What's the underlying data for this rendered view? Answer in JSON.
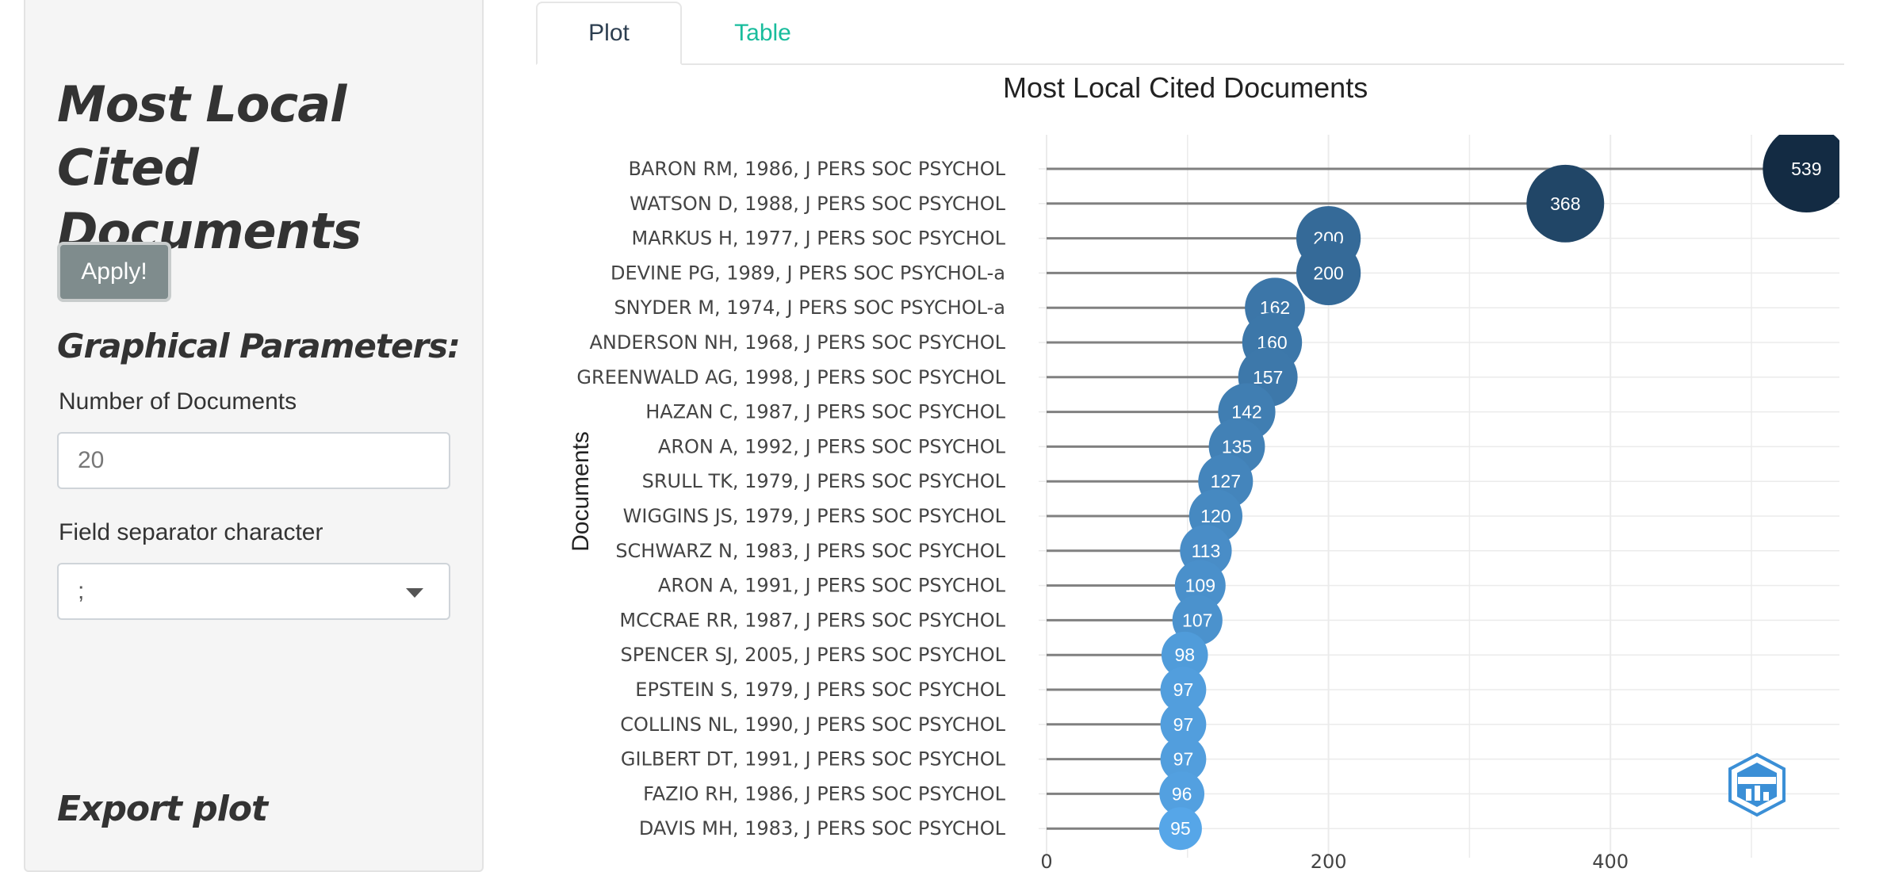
{
  "sidebar": {
    "title": "Most Local Cited Documents",
    "apply_label": "Apply!",
    "graphical_heading": "Graphical Parameters:",
    "num_docs_label": "Number of Documents",
    "num_docs_value": "20",
    "separator_label": "Field separator character",
    "separator_value": ";",
    "export_heading": "Export plot"
  },
  "tabs": [
    {
      "label": "Plot",
      "active": true
    },
    {
      "label": "Table",
      "active": false
    }
  ],
  "colors": {
    "accent_tab": "#18bc9c",
    "bubble_light": "#56a6e8",
    "bubble_dark": "#132b43"
  },
  "chart_data": {
    "type": "scatter",
    "title": "Most Local Cited Documents",
    "ylabel": "Documents",
    "xlabel": "",
    "categories": [
      "BARON RM, 1986, J PERS SOC PSYCHOL",
      "WATSON D, 1988, J PERS SOC PSYCHOL",
      "MARKUS H, 1977, J PERS SOC PSYCHOL",
      "DEVINE PG, 1989, J PERS SOC PSYCHOL-a",
      "SNYDER M, 1974, J PERS SOC PSYCHOL-a",
      "ANDERSON NH, 1968, J PERS SOC PSYCHOL",
      "GREENWALD AG, 1998, J PERS SOC PSYCHOL",
      "HAZAN C, 1987, J PERS SOC PSYCHOL",
      "ARON A, 1992, J PERS SOC PSYCHOL",
      "SRULL TK, 1979, J PERS SOC PSYCHOL",
      "WIGGINS JS, 1979, J PERS SOC PSYCHOL",
      "SCHWARZ N, 1983, J PERS SOC PSYCHOL",
      "ARON A, 1991, J PERS SOC PSYCHOL",
      "MCCRAE RR, 1987, J PERS SOC PSYCHOL",
      "SPENCER SJ, 2005, J PERS SOC PSYCHOL",
      "EPSTEIN S, 1979, J PERS SOC PSYCHOL",
      "COLLINS NL, 1990, J PERS SOC PSYCHOL",
      "GILBERT DT, 1991, J PERS SOC PSYCHOL",
      "FAZIO RH, 1986, J PERS SOC PSYCHOL",
      "DAVIS MH, 1983, J PERS SOC PSYCHOL"
    ],
    "values": [
      539,
      368,
      200,
      200,
      162,
      160,
      157,
      142,
      135,
      127,
      120,
      113,
      109,
      107,
      98,
      97,
      97,
      97,
      96,
      95
    ],
    "xlim": [
      0,
      565
    ],
    "xticks": [
      0,
      200,
      400
    ],
    "grid": true,
    "legend": "none"
  }
}
